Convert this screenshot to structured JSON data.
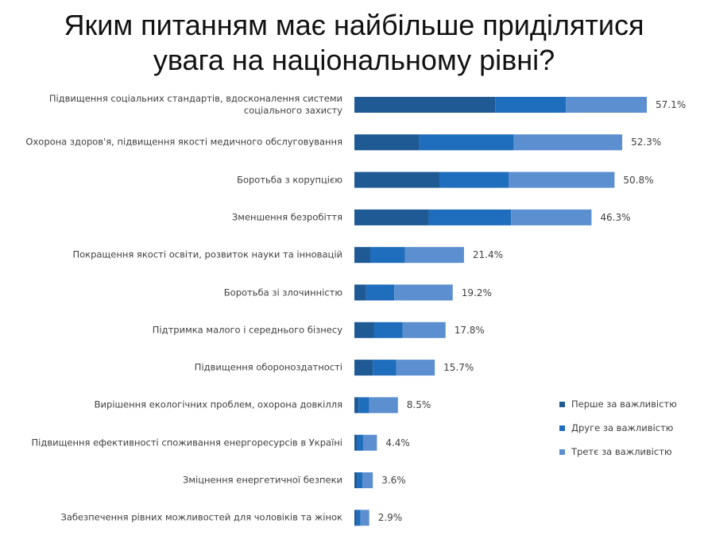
{
  "title": {
    "line1": "Яким питанням має найбільше приділятися",
    "line2": "увага на національному рівні?"
  },
  "colors": {
    "first": "#1f5a94",
    "second": "#1f6dbd",
    "third": "#5b8fd0"
  },
  "chart_data": {
    "type": "bar",
    "orientation": "horizontal",
    "stacked": true,
    "categories": [
      "Підвищення соціальних стандартів, вдосконалення системи соціального захисту",
      "Охорона здоров'я, підвищення якості медичного обслуговування",
      "Боротьба з корупцією",
      "Зменшення безробіття",
      "Покращення якості освіти, розвиток науки та інновацій",
      "Боротьба зі злочинністю",
      "Підтримка малого і середнього бізнесу",
      "Підвищення обороноздатності",
      "Вирішення екологічних проблем, охорона довкілля",
      "Підвищення ефективності споживання енергоресурсів в Україні",
      "Зміцнення енергетичної безпеки",
      "Забезпечення рівних можливостей для чоловіків та жінок"
    ],
    "series": [
      {
        "name": "Перше за важливістю",
        "values": [
          27.5,
          12.7,
          16.6,
          14.5,
          3.1,
          2.3,
          3.8,
          3.6,
          0.8,
          0.6,
          0.6,
          0.4
        ]
      },
      {
        "name": "Друге за важливістю",
        "values": [
          13.8,
          18.4,
          13.5,
          16.1,
          6.8,
          5.5,
          5.6,
          4.6,
          2.1,
          1.1,
          1.0,
          0.8
        ]
      },
      {
        "name": "Третє за важливістю",
        "values": [
          15.8,
          21.2,
          20.7,
          15.7,
          11.5,
          11.4,
          8.4,
          7.5,
          5.6,
          2.7,
          2.0,
          1.7
        ]
      }
    ],
    "totals": [
      "57.1%",
      "52.3%",
      "50.8%",
      "46.3%",
      "21.4%",
      "19.2%",
      "17.8%",
      "15.7%",
      "8.5%",
      "4.4%",
      "3.6%",
      "2.9%"
    ],
    "xlim": [
      0,
      57.1
    ],
    "grid": false,
    "legend_position": "bottom-right"
  }
}
